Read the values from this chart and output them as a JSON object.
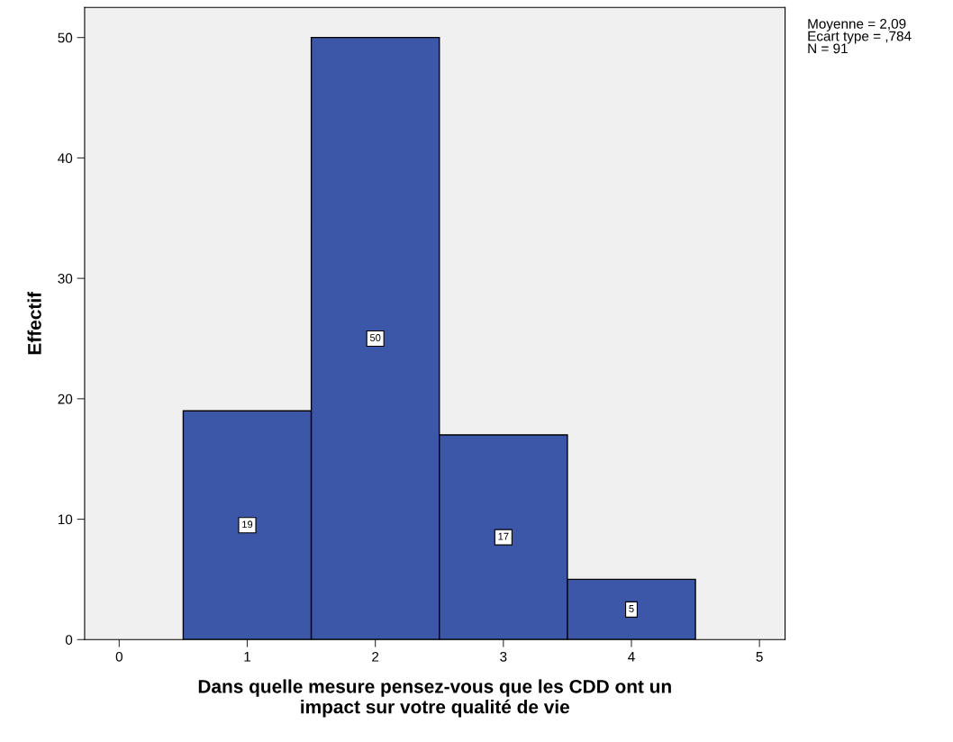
{
  "chart_data": {
    "type": "histogram",
    "xlabel": "Dans quelle mesure pensez-vous que les CDD ont un\nimpact sur votre qualité de vie",
    "ylabel": "Effectif",
    "bins": [
      0.5,
      1.5,
      2.5,
      3.5,
      4.5
    ],
    "values": [
      19,
      50,
      17,
      5
    ],
    "color": "#3c56a8",
    "data_labels": true,
    "xlim": [
      -0.27,
      5.2
    ],
    "xticks": [
      0,
      1,
      2,
      3,
      4,
      5
    ],
    "ylim": [
      0,
      52.5
    ],
    "yticks": [
      0,
      10,
      20,
      30,
      40,
      50
    ],
    "grid": false,
    "annotations": [
      "Moyenne = 2,09\nEcart type = ,784\nN = 91"
    ]
  }
}
